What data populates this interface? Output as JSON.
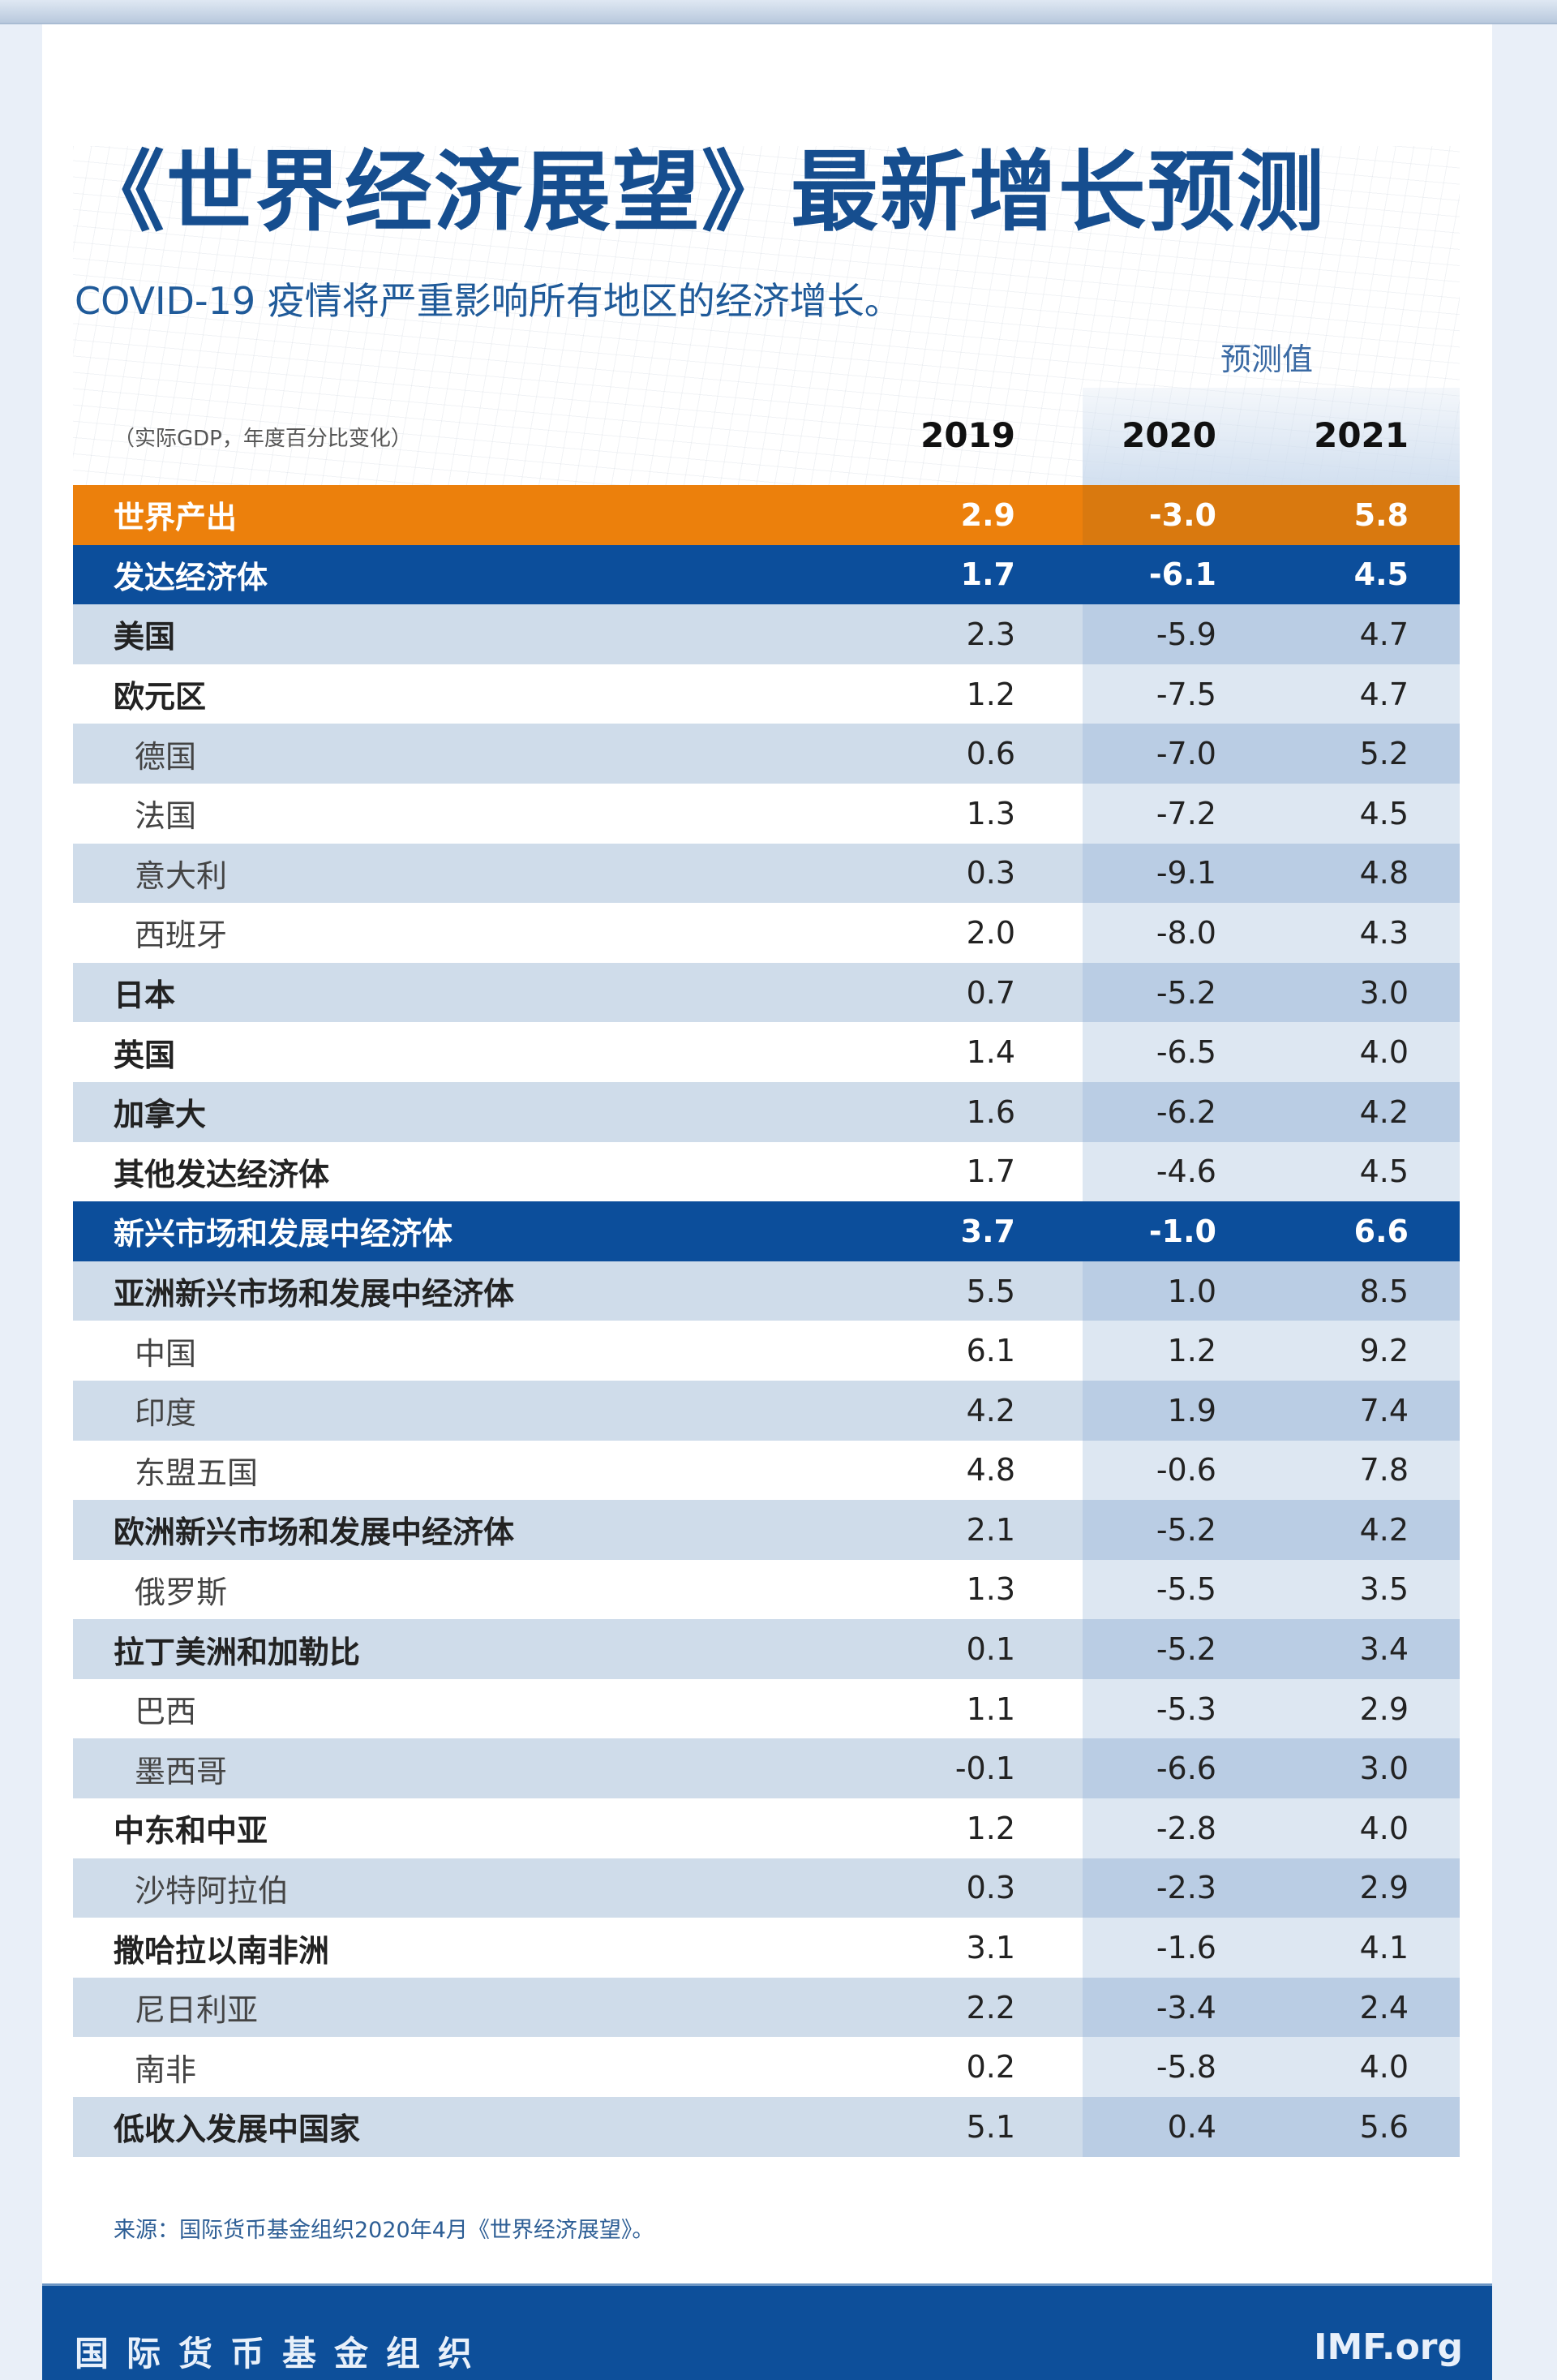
{
  "title": "《世界经济展望》最新增长预测",
  "subtitle": "COVID-19 疫情将严重影响所有地区的经济增长。",
  "forecast_label": "预测值",
  "unit_note": "（实际GDP，年度百分比变化）",
  "columns": [
    "2019",
    "2020",
    "2021"
  ],
  "colors": {
    "orange": "#ec800c",
    "blue": "#0c4e9b",
    "title": "#164e8f"
  },
  "rows": [
    {
      "label": "世界产出",
      "type": "orange",
      "values": [
        "2.9",
        "-3.0",
        "5.8"
      ]
    },
    {
      "label": "发达经济体",
      "type": "blue",
      "values": [
        "1.7",
        "-6.1",
        "4.5"
      ]
    },
    {
      "label": "美国",
      "values": [
        "2.3",
        "-5.9",
        "4.7"
      ]
    },
    {
      "label": "欧元区",
      "values": [
        "1.2",
        "-7.5",
        "4.7"
      ]
    },
    {
      "label": "德国",
      "indent": true,
      "values": [
        "0.6",
        "-7.0",
        "5.2"
      ]
    },
    {
      "label": "法国",
      "indent": true,
      "values": [
        "1.3",
        "-7.2",
        "4.5"
      ]
    },
    {
      "label": "意大利",
      "indent": true,
      "values": [
        "0.3",
        "-9.1",
        "4.8"
      ]
    },
    {
      "label": "西班牙",
      "indent": true,
      "values": [
        "2.0",
        "-8.0",
        "4.3"
      ]
    },
    {
      "label": "日本",
      "values": [
        "0.7",
        "-5.2",
        "3.0"
      ]
    },
    {
      "label": "英国",
      "values": [
        "1.4",
        "-6.5",
        "4.0"
      ]
    },
    {
      "label": "加拿大",
      "values": [
        "1.6",
        "-6.2",
        "4.2"
      ]
    },
    {
      "label": "其他发达经济体",
      "values": [
        "1.7",
        "-4.6",
        "4.5"
      ]
    },
    {
      "label": "新兴市场和发展中经济体",
      "type": "blue",
      "values": [
        "3.7",
        "-1.0",
        "6.6"
      ]
    },
    {
      "label": "亚洲新兴市场和发展中经济体",
      "values": [
        "5.5",
        "1.0",
        "8.5"
      ]
    },
    {
      "label": "中国",
      "indent": true,
      "values": [
        "6.1",
        "1.2",
        "9.2"
      ]
    },
    {
      "label": "印度",
      "indent": true,
      "values": [
        "4.2",
        "1.9",
        "7.4"
      ]
    },
    {
      "label": "东盟五国",
      "indent": true,
      "values": [
        "4.8",
        "-0.6",
        "7.8"
      ]
    },
    {
      "label": "欧洲新兴市场和发展中经济体",
      "values": [
        "2.1",
        "-5.2",
        "4.2"
      ]
    },
    {
      "label": "俄罗斯",
      "indent": true,
      "values": [
        "1.3",
        "-5.5",
        "3.5"
      ]
    },
    {
      "label": "拉丁美洲和加勒比",
      "values": [
        "0.1",
        "-5.2",
        "3.4"
      ]
    },
    {
      "label": "巴西",
      "indent": true,
      "values": [
        "1.1",
        "-5.3",
        "2.9"
      ]
    },
    {
      "label": "墨西哥",
      "indent": true,
      "values": [
        "-0.1",
        "-6.6",
        "3.0"
      ]
    },
    {
      "label": "中东和中亚",
      "values": [
        "1.2",
        "-2.8",
        "4.0"
      ]
    },
    {
      "label": "沙特阿拉伯",
      "indent": true,
      "values": [
        "0.3",
        "-2.3",
        "2.9"
      ]
    },
    {
      "label": "撒哈拉以南非洲",
      "values": [
        "3.1",
        "-1.6",
        "4.1"
      ]
    },
    {
      "label": "尼日利亚",
      "indent": true,
      "values": [
        "2.2",
        "-3.4",
        "2.4"
      ]
    },
    {
      "label": "南非",
      "indent": true,
      "values": [
        "0.2",
        "-5.8",
        "4.0"
      ]
    },
    {
      "label": "低收入发展中国家",
      "values": [
        "5.1",
        "0.4",
        "5.6"
      ]
    }
  ],
  "source": "来源：国际货币基金组织2020年4月《世界经济展望》。",
  "footer": {
    "org": "国际货币基金组织",
    "site": "IMF.org"
  }
}
